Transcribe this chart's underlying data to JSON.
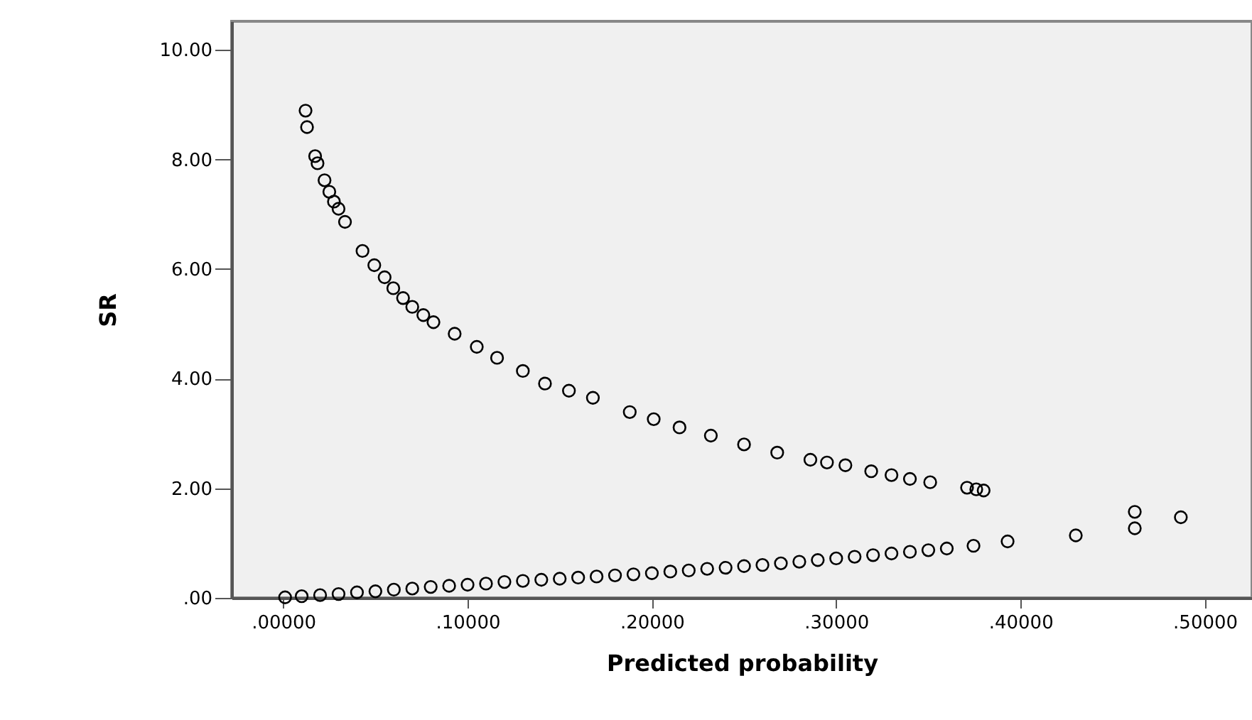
{
  "chart_data": {
    "type": "scatter",
    "xlabel": "Predicted probability",
    "ylabel": "SR",
    "xlim": [
      -0.028,
      0.5256
    ],
    "ylim": [
      0,
      10.52
    ],
    "xticks": [
      {
        "value": 0,
        "label": ".00000"
      },
      {
        "value": 0.1,
        "label": ".10000"
      },
      {
        "value": 0.2,
        "label": ".20000"
      },
      {
        "value": 0.3,
        "label": ".30000"
      },
      {
        "value": 0.4,
        "label": ".40000"
      },
      {
        "value": 0.5,
        "label": ".50000"
      }
    ],
    "yticks": [
      {
        "value": 0,
        "label": ".00"
      },
      {
        "value": 2,
        "label": "2.00"
      },
      {
        "value": 4,
        "label": "4.00"
      },
      {
        "value": 6,
        "label": "6.00"
      },
      {
        "value": 8,
        "label": "8.00"
      },
      {
        "value": 10,
        "label": "10.00"
      }
    ],
    "grid": false,
    "marker": "circle",
    "series": [
      {
        "color": "#000000",
        "x": [
          0.0121,
          0.0129,
          0.0173,
          0.0186,
          0.0224,
          0.025,
          0.0275,
          0.03,
          0.0335,
          0.043,
          0.0494,
          0.055,
          0.0597,
          0.065,
          0.07,
          0.076,
          0.0815,
          0.093,
          0.105,
          0.116,
          0.13,
          0.142,
          0.155,
          0.168,
          0.188,
          0.201,
          0.215,
          0.232,
          0.25,
          0.268,
          0.286,
          0.295,
          0.305,
          0.319,
          0.33,
          0.34,
          0.351,
          0.371,
          0.376,
          0.38,
          0.001,
          0.01,
          0.02,
          0.03,
          0.04,
          0.05,
          0.06,
          0.07,
          0.08,
          0.09,
          0.1,
          0.11,
          0.12,
          0.13,
          0.14,
          0.15,
          0.16,
          0.17,
          0.18,
          0.19,
          0.2,
          0.21,
          0.22,
          0.23,
          0.24,
          0.25,
          0.26,
          0.27,
          0.28,
          0.29,
          0.3,
          0.31,
          0.32,
          0.33,
          0.34,
          0.35,
          0.36,
          0.3745,
          0.393,
          0.43,
          0.462,
          0.462,
          0.487
        ],
        "values": [
          8.89,
          8.59,
          8.06,
          7.93,
          7.62,
          7.41,
          7.23,
          7.1,
          6.86,
          6.33,
          6.07,
          5.85,
          5.65,
          5.47,
          5.31,
          5.16,
          5.03,
          4.82,
          4.58,
          4.38,
          4.14,
          3.91,
          3.78,
          3.65,
          3.39,
          3.26,
          3.11,
          2.96,
          2.8,
          2.65,
          2.52,
          2.47,
          2.42,
          2.31,
          2.24,
          2.17,
          2.11,
          2.01,
          1.98,
          1.96,
          0.01,
          0.03,
          0.05,
          0.07,
          0.1,
          0.12,
          0.15,
          0.17,
          0.2,
          0.22,
          0.24,
          0.26,
          0.29,
          0.31,
          0.33,
          0.35,
          0.37,
          0.39,
          0.41,
          0.43,
          0.45,
          0.48,
          0.5,
          0.53,
          0.55,
          0.58,
          0.6,
          0.63,
          0.66,
          0.69,
          0.72,
          0.75,
          0.78,
          0.81,
          0.84,
          0.87,
          0.9,
          0.95,
          1.03,
          1.14,
          1.27,
          1.57,
          1.47
        ]
      }
    ]
  }
}
